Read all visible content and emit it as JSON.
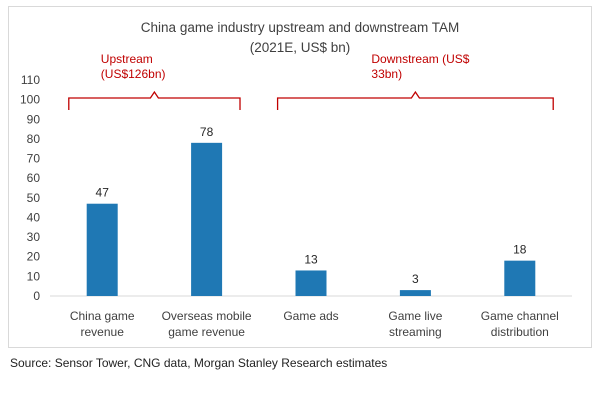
{
  "chart_data": {
    "type": "bar",
    "title_line1": "China game industry upstream and downstream TAM",
    "title_line2": "(2021E, US$ bn)",
    "categories": [
      [
        "China game",
        "revenue"
      ],
      [
        "Overseas mobile",
        "game revenue"
      ],
      [
        "Game ads"
      ],
      [
        "Game live",
        "streaming"
      ],
      [
        "Game channel",
        "distribution"
      ]
    ],
    "values": [
      47,
      78,
      13,
      3,
      18
    ],
    "data_labels": [
      "47",
      "78",
      "13",
      "3",
      "18"
    ],
    "ylim": [
      0,
      110
    ],
    "yticks": [
      0,
      10,
      20,
      30,
      40,
      50,
      60,
      70,
      80,
      90,
      100,
      110
    ],
    "gridlines": false,
    "bar_color": "#1f78b4",
    "annotations": [
      {
        "label": [
          "Upstream",
          "(US$126bn)"
        ],
        "spans_categories": [
          0,
          1
        ],
        "color": "#c00000"
      },
      {
        "label": [
          "Downstream (US$",
          "33bn)"
        ],
        "spans_categories": [
          2,
          4
        ],
        "color": "#c00000"
      }
    ]
  },
  "source": "Source: Sensor Tower, CNG data, Morgan Stanley Research estimates"
}
